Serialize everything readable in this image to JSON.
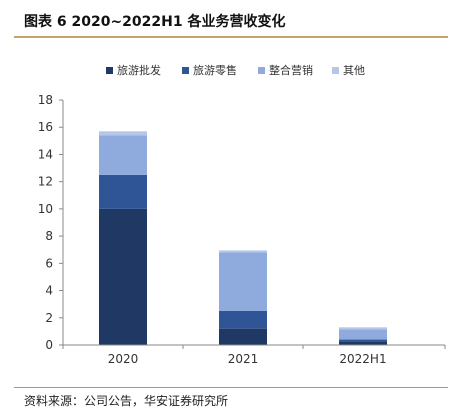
{
  "header": {
    "title": "图表 6 2020~2022H1 各业务营收变化",
    "accent_color": "#c9a46a"
  },
  "footer": {
    "source": "资料来源：公司公告，华安证券研究所"
  },
  "chart_data": {
    "type": "bar",
    "stacked": true,
    "categories": [
      "2020",
      "2021",
      "2022H1"
    ],
    "series": [
      {
        "name": "旅游批发",
        "values": [
          10.0,
          1.2,
          0.25
        ],
        "color": "#1f3864"
      },
      {
        "name": "旅游零售",
        "values": [
          2.5,
          1.3,
          0.15
        ],
        "color": "#2f5597"
      },
      {
        "name": "整合营销",
        "values": [
          2.9,
          4.3,
          0.75
        ],
        "color": "#8faadc"
      },
      {
        "name": "其他",
        "values": [
          0.3,
          0.15,
          0.15
        ],
        "color": "#b4c7e7"
      }
    ],
    "ylim": [
      0,
      18
    ],
    "yticks": [
      0,
      2,
      4,
      6,
      8,
      10,
      12,
      14,
      16,
      18
    ],
    "legend_position": "top",
    "grid": false,
    "title": "",
    "xlabel": "",
    "ylabel": ""
  }
}
